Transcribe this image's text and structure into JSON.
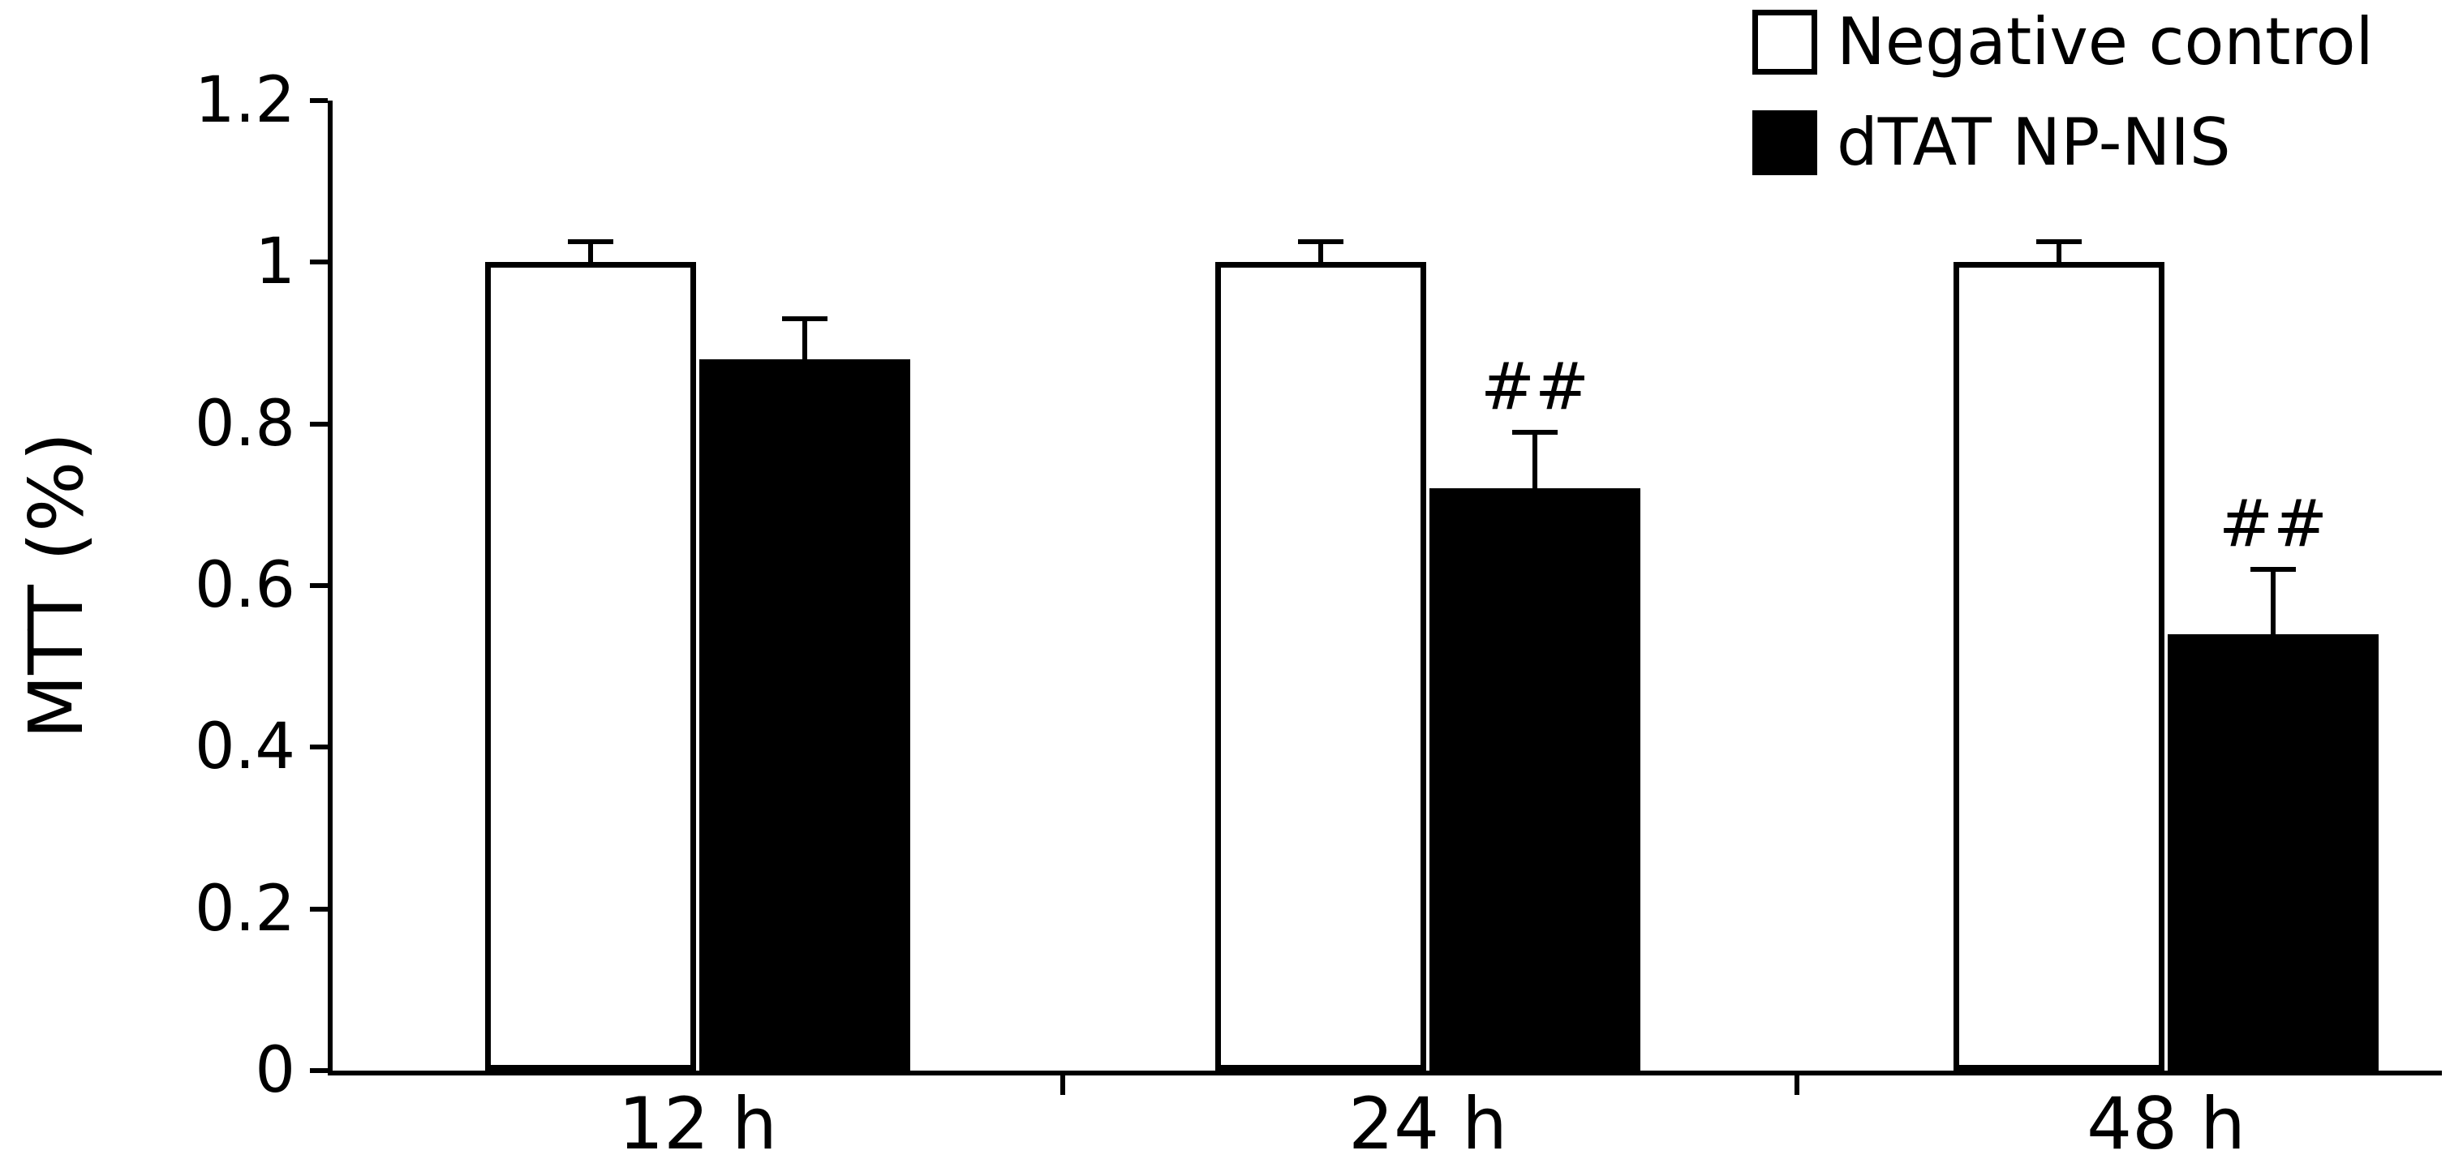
{
  "figure": {
    "background": "#ffffff",
    "bar_fill_series1": "#ffffff",
    "bar_fill_series2": "#000000",
    "axis_color": "#000000"
  },
  "chart_data": {
    "type": "bar",
    "title": "",
    "categories": [
      "12 h",
      "24 h",
      "48 h"
    ],
    "series": [
      {
        "name": "Negative control",
        "fill": "#ffffff",
        "border": "#000000",
        "values": [
          1.0,
          1.0,
          1.0
        ],
        "errors": [
          0.025,
          0.025,
          0.025
        ],
        "annotations": [
          "",
          "",
          ""
        ]
      },
      {
        "name": "dTAT NP-NIS",
        "fill": "#000000",
        "border": "#000000",
        "values": [
          0.88,
          0.72,
          0.54
        ],
        "errors": [
          0.05,
          0.07,
          0.08
        ],
        "annotations": [
          "",
          "##",
          "##"
        ]
      }
    ],
    "xlabel": "",
    "ylabel": "MTT (%)",
    "ylim": [
      0,
      1.2
    ],
    "yticks": [
      0,
      0.2,
      0.4,
      0.6,
      0.8,
      1,
      1.2
    ],
    "ytick_labels": [
      "0",
      "0.2",
      "0.4",
      "0.6",
      "0.8",
      "1",
      "1.2"
    ],
    "legend_position": "top-right",
    "grid": false,
    "error_bars": true
  }
}
